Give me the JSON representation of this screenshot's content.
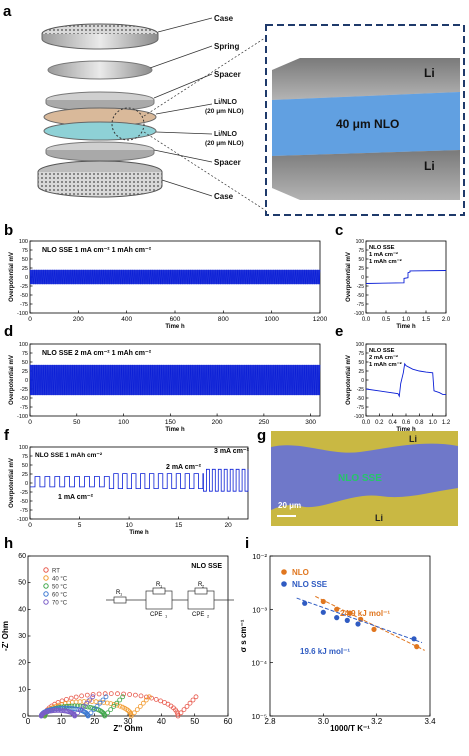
{
  "panels": {
    "a": "a",
    "b": "b",
    "c": "c",
    "d": "d",
    "e": "e",
    "f": "f",
    "g": "g",
    "h": "h",
    "i": "i"
  },
  "panel_a": {
    "labels": [
      "Case",
      "Spring",
      "Spacer",
      "Li/NLO",
      "(20 μm NLO)",
      "Li/NLO",
      "(20 μm NLO)",
      "Spacer",
      "Case"
    ],
    "sem": {
      "top": "Li",
      "middle": "40 μm NLO",
      "bottom": "Li"
    },
    "colors": {
      "nlo": "#4a90e2",
      "frame": "#1f3a6b"
    }
  },
  "panel_g": {
    "label_top": "Li",
    "label_mid": "NLO SSE",
    "label_bottom": "Li",
    "scale_bar": "20 μm",
    "colors": {
      "li": "#c9b843",
      "nlo": "#6f78c9",
      "text": "#27c56a"
    }
  },
  "chart_data": [
    {
      "id": "b",
      "type": "line",
      "ylabel": "Overpotential mV",
      "xlabel": "Time h",
      "xlim": [
        0,
        1200
      ],
      "ylim": [
        -100,
        100
      ],
      "xticks": [
        0,
        200,
        400,
        600,
        800,
        1000,
        1200
      ],
      "yticks": [
        -100,
        -75,
        -50,
        -25,
        0,
        25,
        50,
        75,
        100
      ],
      "annotation": "NLO SSE 1 mA cm⁻²  1 mAh cm⁻²",
      "band": [
        -20,
        20
      ],
      "color": "#0b1fd6"
    },
    {
      "id": "c",
      "type": "line",
      "ylabel": "Overpotential mV",
      "xlabel": "Time h",
      "xlim": [
        0,
        2.0
      ],
      "ylim": [
        -100,
        100
      ],
      "xticks": [
        0.0,
        0.5,
        1.0,
        1.5,
        2.0
      ],
      "yticks": [
        -100,
        -75,
        -50,
        -25,
        0,
        25,
        50,
        75,
        100
      ],
      "annotation": [
        "NLO SSE",
        "1 mA cm⁻²",
        "1 mAh cm⁻²"
      ],
      "x": [
        0,
        0.95,
        0.95,
        1.05,
        1.05,
        1.1,
        1.1,
        2.0
      ],
      "y": [
        -18,
        -16,
        -4,
        -2,
        12,
        14,
        17,
        18
      ],
      "color": "#0b1fd6"
    },
    {
      "id": "d",
      "type": "line",
      "ylabel": "Overpotential mV",
      "xlabel": "Time h",
      "xlim": [
        0,
        310
      ],
      "ylim": [
        -100,
        100
      ],
      "xticks": [
        0,
        50,
        100,
        150,
        200,
        250,
        300
      ],
      "yticks": [
        -100,
        -75,
        -50,
        -25,
        0,
        25,
        50,
        75,
        100
      ],
      "annotation": "NLO SSE 2 mA cm⁻²   1 mAh cm⁻²",
      "band": [
        -42,
        42
      ],
      "color": "#0b1fd6"
    },
    {
      "id": "e",
      "type": "line",
      "ylabel": "Overpotential mV",
      "xlabel": "Time h",
      "xlim": [
        0,
        1.2
      ],
      "ylim": [
        -100,
        100
      ],
      "xticks": [
        0.0,
        0.2,
        0.4,
        0.6,
        0.8,
        1.0,
        1.2
      ],
      "yticks": [
        -100,
        -75,
        -50,
        -25,
        0,
        25,
        50,
        75,
        100
      ],
      "annotation": [
        "NLO SSE",
        "2 mA cm⁻²",
        "1 mAh cm⁻²"
      ],
      "x": [
        0,
        0.48,
        0.5,
        0.52,
        0.54,
        0.56,
        0.58,
        0.6,
        0.7,
        0.8,
        0.9,
        1.0,
        1.02,
        1.1,
        1.15,
        1.2
      ],
      "y": [
        -25,
        -38,
        -45,
        -10,
        5,
        20,
        45,
        40,
        30,
        25,
        22,
        20,
        -30,
        -35,
        -40,
        -40
      ],
      "color": "#0b1fd6"
    },
    {
      "id": "f",
      "type": "line",
      "ylabel": "Overpotential mV",
      "xlabel": "Time h",
      "xlim": [
        0,
        22
      ],
      "ylim": [
        -100,
        100
      ],
      "xticks": [
        0,
        5,
        10,
        15,
        20
      ],
      "yticks": [
        -100,
        -75,
        -50,
        -25,
        0,
        25,
        50,
        75,
        100
      ],
      "annotations": [
        "NLO SSE 1 mAh cm⁻²",
        "1 mA cm⁻²",
        "2 mA cm⁻²",
        "3 mA cm⁻²"
      ],
      "segments": [
        {
          "from": 0,
          "to": 8,
          "amp": 18
        },
        {
          "from": 8,
          "to": 17.5,
          "amp": 26
        },
        {
          "from": 17.5,
          "to": 22,
          "amp": 38
        }
      ],
      "color": "#0b1fd6"
    },
    {
      "id": "h",
      "type": "scatter",
      "title": "NLO SSE",
      "xlabel": "Z'' Ohm",
      "ylabel": "-Z' Ohm",
      "xlim": [
        0,
        60
      ],
      "ylim": [
        0,
        60
      ],
      "xticks": [
        0,
        10,
        20,
        30,
        40,
        50,
        60
      ],
      "yticks": [
        0,
        10,
        20,
        30,
        40,
        50,
        60
      ],
      "circuit": {
        "R1": "R",
        "R1_sub": "1",
        "R2": "R",
        "R2_sub": "1",
        "R3": "R",
        "R3_sub": "2",
        "CPE1": "CPE",
        "CPE1_sub": "1",
        "CPE2": "CPE",
        "CPE2_sub": "2"
      },
      "series": [
        {
          "name": "RT",
          "color": "#e8574a",
          "center": 25,
          "r": 20,
          "x0": 5
        },
        {
          "name": "40 °C",
          "color": "#f29b2f",
          "center": 19,
          "r": 13,
          "x0": 5
        },
        {
          "name": "50 °C",
          "color": "#3fa64a",
          "center": 14,
          "r": 9,
          "x0": 5
        },
        {
          "name": "60 °C",
          "color": "#3b78d2",
          "center": 11,
          "r": 7,
          "x0": 4
        },
        {
          "name": "70 °C",
          "color": "#7a5cc7",
          "center": 9,
          "r": 5,
          "x0": 4
        }
      ]
    },
    {
      "id": "i",
      "type": "scatter",
      "xlabel": "1000/T K⁻¹",
      "ylabel": "σ s cm⁻¹",
      "xlim": [
        2.8,
        3.4
      ],
      "ylog": true,
      "ylim": [
        1e-05,
        0.01
      ],
      "xticks": [
        2.8,
        3.0,
        3.2,
        3.4
      ],
      "yticks": [
        "10⁻⁵",
        "10⁻⁴",
        "10⁻³",
        "10⁻²"
      ],
      "annotations": [
        "24.9 kJ mol⁻¹",
        "19.6 kJ mol⁻¹"
      ],
      "series": [
        {
          "name": "NLO",
          "color": "#e0761f",
          "x": [
            3.0,
            3.05,
            3.1,
            3.14,
            3.19,
            3.35
          ],
          "y": [
            0.0014,
            0.001,
            0.00085,
            0.00065,
            0.00042,
            0.0002
          ]
        },
        {
          "name": "NLO SSE",
          "color": "#2f5bc2",
          "x": [
            2.93,
            3.0,
            3.05,
            3.09,
            3.13,
            3.34
          ],
          "y": [
            0.0013,
            0.00088,
            0.0007,
            0.00062,
            0.00053,
            0.00028
          ]
        }
      ]
    }
  ]
}
